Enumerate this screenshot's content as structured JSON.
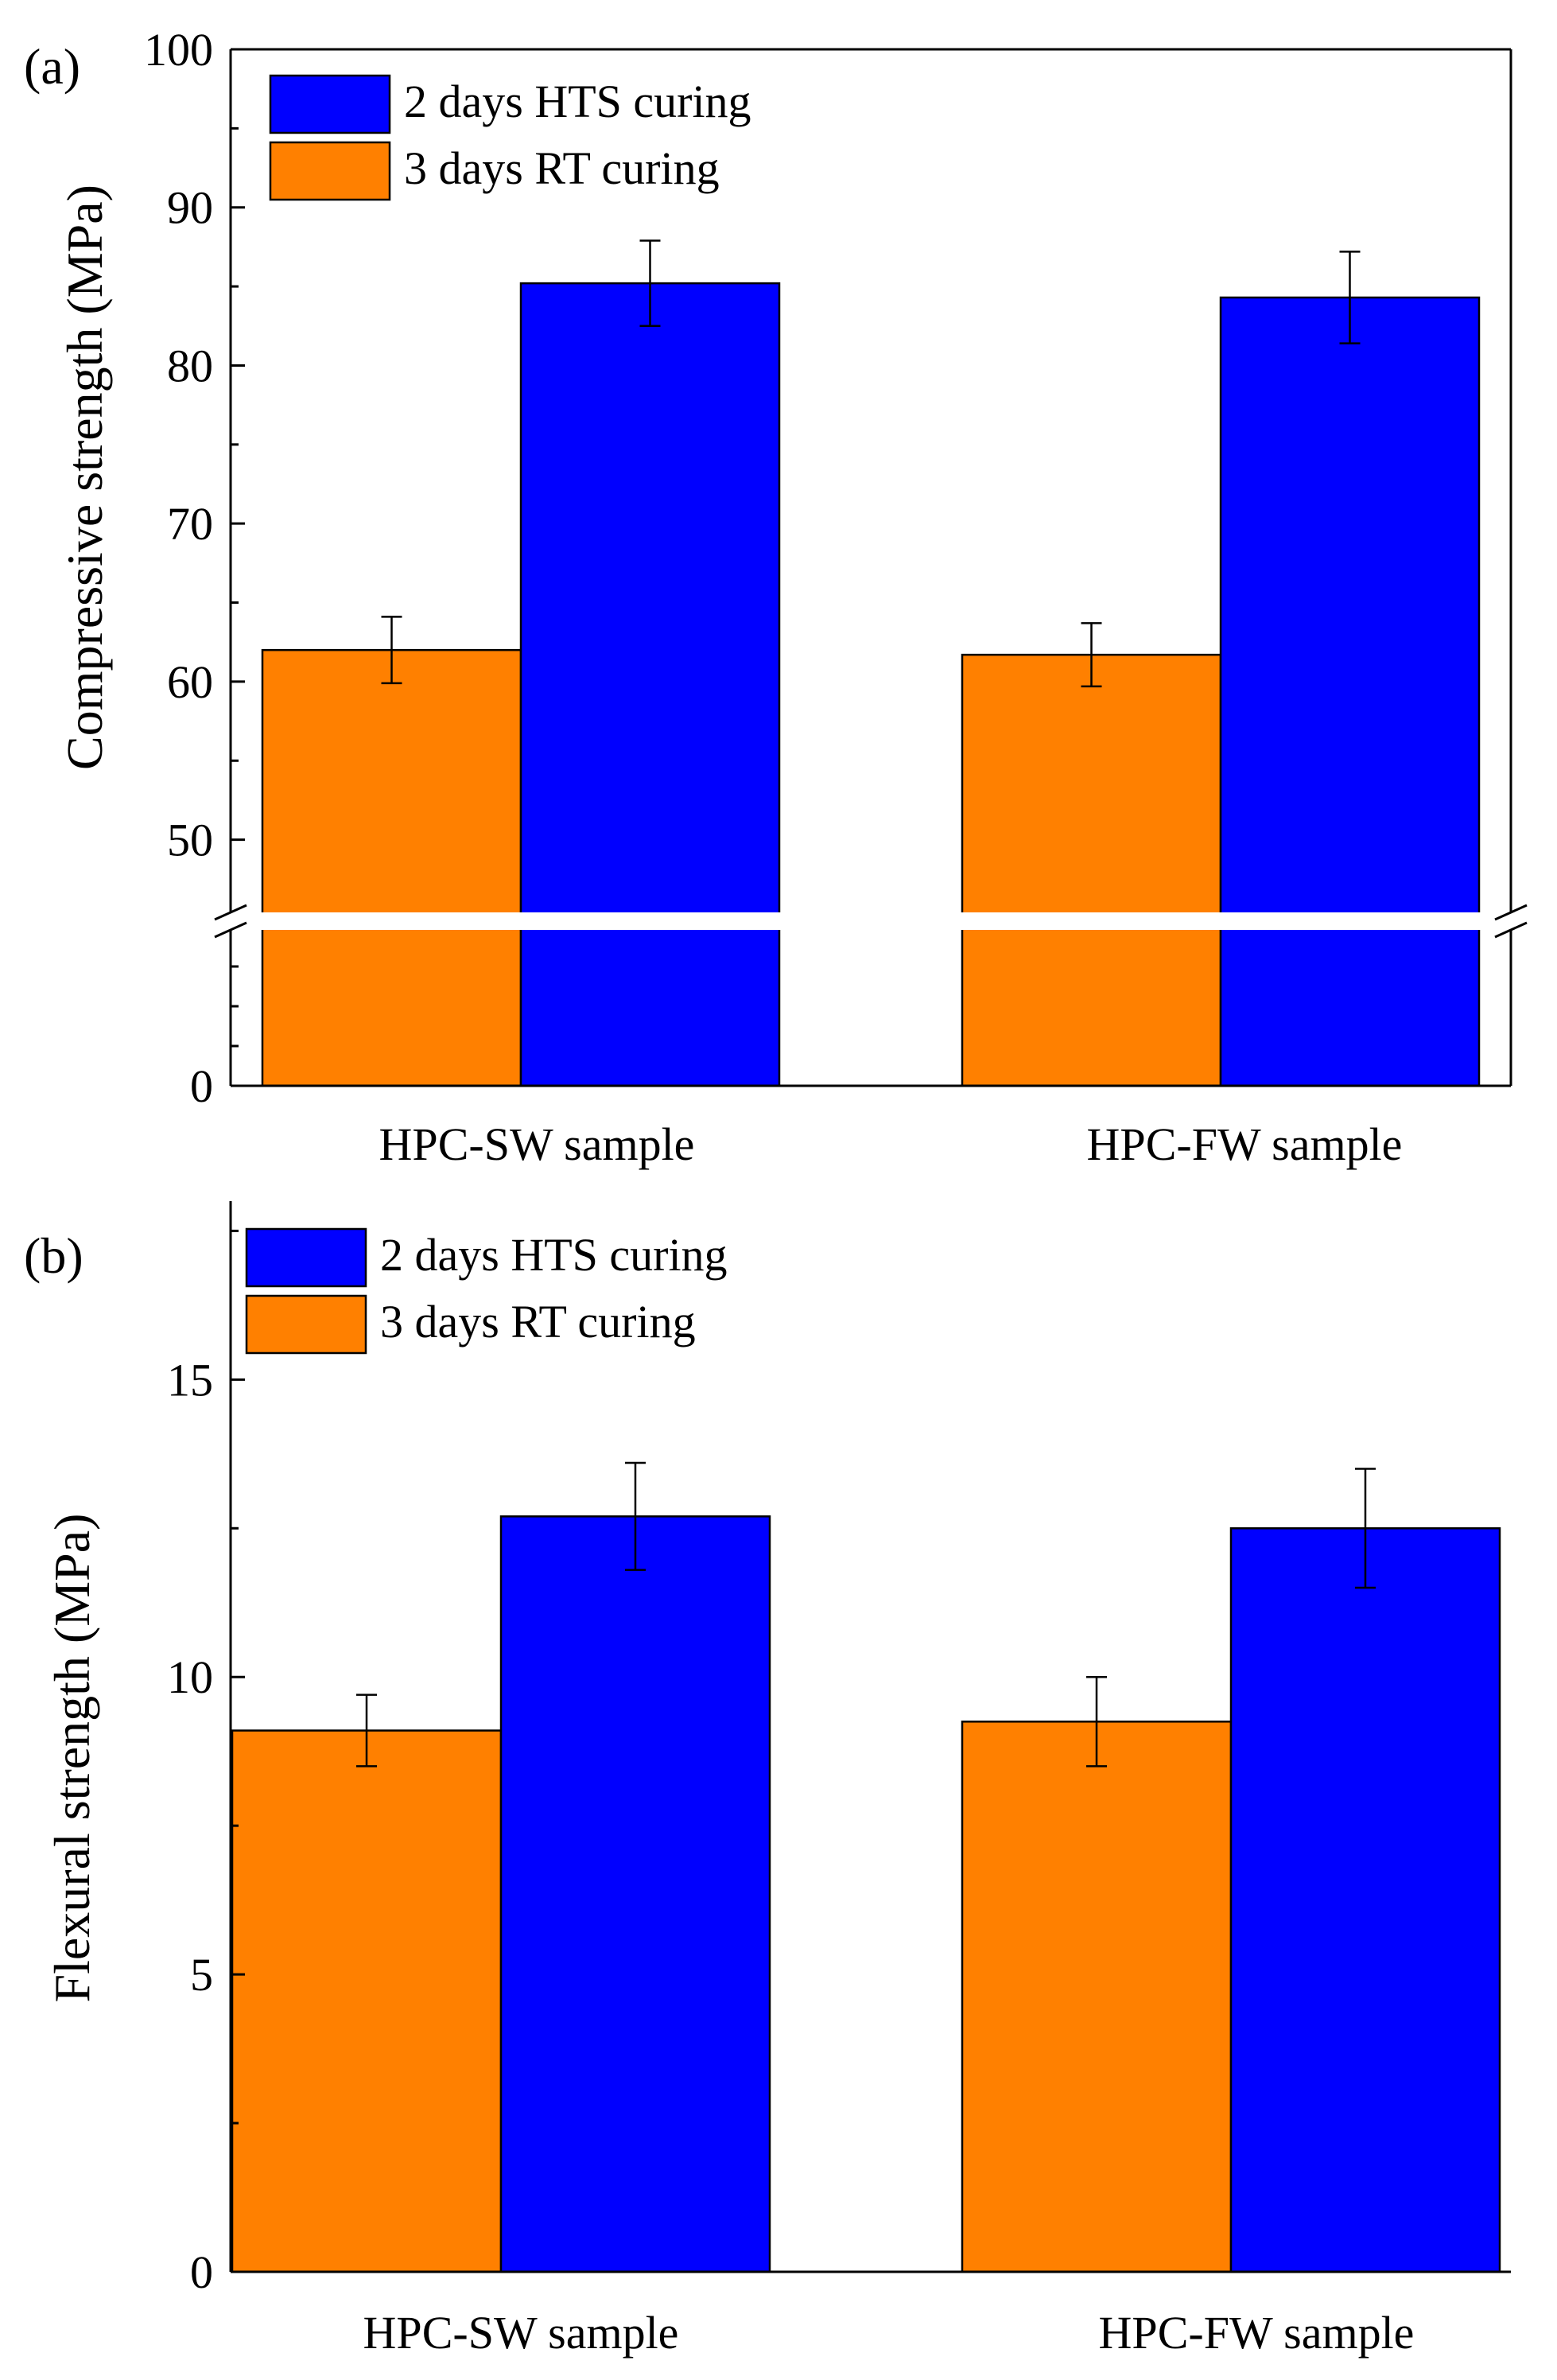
{
  "chart_data": [
    {
      "type": "bar",
      "panel_label": "(a)",
      "ylabel": "Compressive strength (MPa)",
      "categories": [
        "HPC-SW sample",
        "HPC-FW sample"
      ],
      "series": [
        {
          "name": "3 days RT curing",
          "color": "#FF8000",
          "values": [
            62.0,
            61.7
          ],
          "errors": [
            2.1,
            2.0
          ]
        },
        {
          "name": "2 days HTS curing",
          "color": "#0000FF",
          "values": [
            85.2,
            84.3
          ],
          "errors": [
            2.7,
            2.9
          ]
        }
      ],
      "axis_break": {
        "lower_range": [
          0,
          10
        ],
        "upper_range": [
          45,
          100
        ]
      },
      "yticks_lower": [
        0
      ],
      "yticks_upper": [
        50,
        60,
        70,
        80,
        90,
        100
      ],
      "legend_order": [
        "2 days HTS curing",
        "3 days RT curing"
      ],
      "legend_position": "top-left",
      "grid": false
    },
    {
      "type": "bar",
      "panel_label": "(b)",
      "ylabel": "Flexural strength (MPa)",
      "categories": [
        "HPC-SW sample",
        "HPC-FW sample"
      ],
      "series": [
        {
          "name": "3 days RT curing",
          "color": "#FF8000",
          "values": [
            9.1,
            9.25
          ],
          "errors": [
            0.6,
            0.75
          ]
        },
        {
          "name": "2 days HTS curing",
          "color": "#0000FF",
          "values": [
            12.7,
            12.5
          ],
          "errors": [
            0.9,
            1.0
          ]
        }
      ],
      "ylim": [
        0,
        18
      ],
      "yticks": [
        0,
        5,
        10,
        15
      ],
      "legend_order": [
        "2 days HTS curing",
        "3 days RT curing"
      ],
      "legend_position": "top-left",
      "grid": false
    }
  ]
}
